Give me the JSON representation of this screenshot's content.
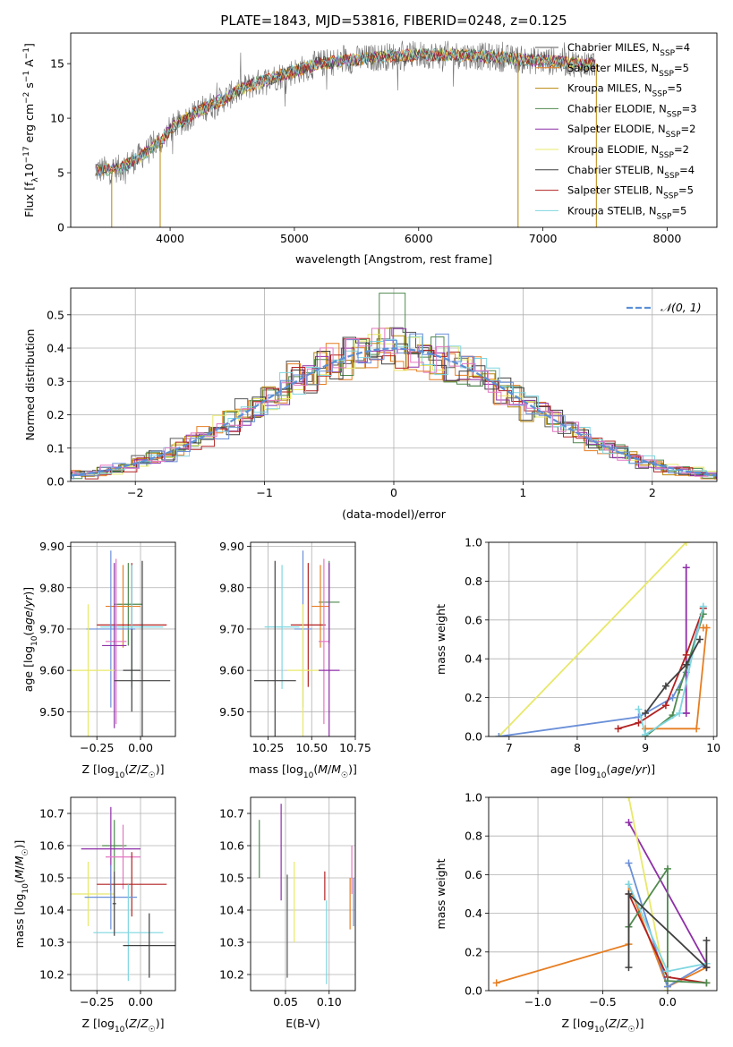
{
  "figure": {
    "title": "PLATE=1843, MJD=53816, FIBERID=0248, z=0.125"
  },
  "colors": {
    "palette": [
      "#5a5a5a",
      "#e67e22",
      "#b8860b",
      "#4f8a4f",
      "#8e2fa8",
      "#e8e86a",
      "#404040",
      "#b22222",
      "#7fd6e0",
      "#6a8fd8",
      "#e377c2"
    ],
    "grid": "#b0b0b0",
    "normal_curve": "#5b8fd6"
  },
  "chart_data": [
    {
      "id": "spectrum",
      "type": "line",
      "xlabel": "wavelength [Angstrom, rest frame]",
      "ylabel": "Flux [fλ 10^-17 erg cm^-2 s^-1 A^-1]",
      "xlim": [
        3200,
        8400
      ],
      "ylim": [
        0,
        17.8
      ],
      "xticks": [
        4000,
        5000,
        6000,
        7000,
        8000
      ],
      "yticks": [
        0,
        5,
        10,
        15
      ],
      "grid": false,
      "legend_position": "top-right",
      "legend": [
        "Chabrier MILES, N_SSP=4",
        "Salpeter MILES, N_SSP=5",
        "Kroupa MILES, N_SSP=5",
        "Chabrier ELODIE, N_SSP=3",
        "Salpeter ELODIE, N_SSP=2",
        "Kroupa ELODIE, N_SSP=2",
        "Chabrier STELIB, N_SSP=4",
        "Salpeter STELIB, N_SSP=5",
        "Kroupa STELIB, N_SSP=5"
      ],
      "legend_colors": [
        "#5a5a5a",
        "#e67e22",
        "#b8860b",
        "#4f8a4f",
        "#8e2fa8",
        "#e8e86a",
        "#404040",
        "#b22222",
        "#7fd6e0"
      ],
      "continuum": {
        "x": [
          3400,
          3600,
          3800,
          3950,
          4000,
          4200,
          4400,
          4600,
          4800,
          5000,
          5200,
          5500,
          5800,
          6000,
          6300,
          6600,
          6900,
          7100,
          7300,
          7420
        ],
        "y": [
          5.2,
          5.4,
          6.8,
          8.2,
          9.0,
          10.5,
          11.6,
          12.8,
          13.6,
          14.3,
          15.0,
          15.4,
          15.7,
          15.8,
          15.8,
          15.6,
          15.3,
          15.2,
          15.0,
          15.0
        ]
      },
      "spikes_down": [
        {
          "x": 3530,
          "y": 0
        },
        {
          "x": 3920,
          "y": 0
        },
        {
          "x": 6800,
          "y": 0
        },
        {
          "x": 7430,
          "y": 0
        }
      ]
    },
    {
      "id": "residuals",
      "type": "histogram",
      "xlabel": "(data-model)/error",
      "ylabel": "Normed distribution",
      "xlim": [
        -2.5,
        2.5
      ],
      "ylim": [
        0,
        0.58
      ],
      "xticks": [
        -2,
        -1,
        0,
        1,
        2
      ],
      "yticks": [
        0.0,
        0.1,
        0.2,
        0.3,
        0.4,
        0.5
      ],
      "grid": true,
      "legend_position": "top-right",
      "legend": [
        "N(0,1)"
      ],
      "legend_tex": "𝒩(0, 1)",
      "bin_width": 0.1
    },
    {
      "id": "age_vs_Z",
      "type": "errorbar",
      "xlabel": "Z [log10(Z/Z☉)]",
      "ylabel": "age [log10(age/yr)]",
      "xlim": [
        -0.4,
        0.2
      ],
      "ylim": [
        9.44,
        9.91
      ],
      "xticks": [
        -0.25,
        0.0
      ],
      "yticks": [
        9.5,
        9.6,
        9.7,
        9.8,
        9.9
      ],
      "grid": true,
      "points": [
        {
          "x": -0.07,
          "y": 9.76,
          "xerr": 0.08,
          "yerr": 0.1,
          "c": "#4f8a4f"
        },
        {
          "x": -0.1,
          "y": 9.755,
          "xerr": 0.1,
          "yerr": 0.1,
          "c": "#e67e22"
        },
        {
          "x": -0.05,
          "y": 9.71,
          "xerr": 0.2,
          "yerr": 0.15,
          "c": "#b22222"
        },
        {
          "x": -0.05,
          "y": 9.705,
          "xerr": 0.18,
          "yerr": 0.15,
          "c": "#7fd6e0"
        },
        {
          "x": -0.17,
          "y": 9.7,
          "xerr": 0.14,
          "yerr": 0.19,
          "c": "#6a8fd8"
        },
        {
          "x": -0.14,
          "y": 9.67,
          "xerr": 0.06,
          "yerr": 0.2,
          "c": "#e377c2"
        },
        {
          "x": -0.15,
          "y": 9.66,
          "xerr": 0.07,
          "yerr": 0.2,
          "c": "#8e2fa8"
        },
        {
          "x": -0.3,
          "y": 9.6,
          "xerr": 0.15,
          "yerr": 0.16,
          "c": "#e8e86a"
        },
        {
          "x": -0.05,
          "y": 9.6,
          "xerr": 0.05,
          "yerr": 0.1,
          "c": "#404040"
        },
        {
          "x": 0.01,
          "y": 9.575,
          "xerr": 0.16,
          "yerr": 0.29,
          "c": "#404040"
        }
      ]
    },
    {
      "id": "age_vs_mass",
      "type": "errorbar",
      "xlabel": "mass [log10(M/M☉)]",
      "ylabel": "",
      "xlim": [
        10.15,
        10.75
      ],
      "ylim": [
        9.44,
        9.91
      ],
      "xticks": [
        10.25,
        10.5,
        10.75
      ],
      "yticks": [
        9.5,
        9.6,
        9.7,
        9.8,
        9.9
      ],
      "grid": true,
      "points": [
        {
          "x": 10.6,
          "y": 9.765,
          "xerr": 0.06,
          "yerr": 0.1,
          "c": "#4f8a4f"
        },
        {
          "x": 10.55,
          "y": 9.755,
          "xerr": 0.05,
          "yerr": 0.1,
          "c": "#e67e22"
        },
        {
          "x": 10.48,
          "y": 9.71,
          "xerr": 0.1,
          "yerr": 0.15,
          "c": "#b22222"
        },
        {
          "x": 10.33,
          "y": 9.705,
          "xerr": 0.1,
          "yerr": 0.15,
          "c": "#7fd6e0"
        },
        {
          "x": 10.45,
          "y": 9.7,
          "xerr": 0.05,
          "yerr": 0.19,
          "c": "#6a8fd8"
        },
        {
          "x": 10.57,
          "y": 9.67,
          "xerr": 0.03,
          "yerr": 0.2,
          "c": "#e377c2"
        },
        {
          "x": 10.6,
          "y": 9.6,
          "xerr": 0.06,
          "yerr": 0.26,
          "c": "#8e2fa8"
        },
        {
          "x": 10.45,
          "y": 9.6,
          "xerr": 0.09,
          "yerr": 0.16,
          "c": "#e8e86a"
        },
        {
          "x": 10.29,
          "y": 9.575,
          "xerr": 0.12,
          "yerr": 0.29,
          "c": "#404040"
        }
      ]
    },
    {
      "id": "massweight_vs_age",
      "type": "line",
      "xlabel": "age  [log10(age/yr)]",
      "ylabel": "mass weight",
      "xlim": [
        6.7,
        10.05
      ],
      "ylim": [
        0,
        1.0
      ],
      "xticks": [
        7,
        8,
        9,
        10
      ],
      "yticks": [
        0.0,
        0.2,
        0.4,
        0.6,
        0.8,
        1.0
      ],
      "grid": true,
      "series": [
        {
          "c": "#e8e86a",
          "x": [
            6.85,
            9.6
          ],
          "y": [
            0.0,
            1.0
          ]
        },
        {
          "c": "#6a8fd8",
          "x": [
            6.85,
            8.9,
            9.4,
            9.6,
            9.85
          ],
          "y": [
            0.0,
            0.1,
            0.2,
            0.33,
            0.66
          ]
        },
        {
          "c": "#e67e22",
          "x": [
            9.0,
            9.75,
            9.9,
            9.85
          ],
          "y": [
            0.04,
            0.04,
            0.56,
            0.56
          ]
        },
        {
          "c": "#8e2fa8",
          "x": [
            9.6,
            9.6,
            9.6
          ],
          "y": [
            0.87,
            0.12,
            0.12
          ]
        },
        {
          "c": "#b22222",
          "x": [
            8.6,
            8.9,
            9.3,
            9.6,
            9.85
          ],
          "y": [
            0.04,
            0.07,
            0.16,
            0.42,
            0.66
          ]
        },
        {
          "c": "#4f8a4f",
          "x": [
            9.0,
            9.4,
            9.5,
            9.85
          ],
          "y": [
            0.0,
            0.11,
            0.24,
            0.63
          ]
        },
        {
          "c": "#7fd6e0",
          "x": [
            8.9,
            9.0,
            9.5,
            9.85
          ],
          "y": [
            0.14,
            0.01,
            0.12,
            0.67
          ]
        },
        {
          "c": "#404040",
          "x": [
            9.0,
            9.3,
            9.6,
            9.8
          ],
          "y": [
            0.12,
            0.26,
            0.37,
            0.5
          ]
        }
      ]
    },
    {
      "id": "mass_vs_Z",
      "type": "errorbar",
      "xlabel": "Z [log10(Z/Z☉)]",
      "ylabel": "mass [log10(M/M☉)]",
      "xlim": [
        -0.4,
        0.2
      ],
      "ylim": [
        10.15,
        10.75
      ],
      "xticks": [
        -0.25,
        0.0
      ],
      "yticks": [
        10.2,
        10.3,
        10.4,
        10.5,
        10.6,
        10.7
      ],
      "grid": true,
      "points": [
        {
          "x": -0.15,
          "y": 10.6,
          "xerr": 0.07,
          "yerr": 0.08,
          "c": "#4f8a4f"
        },
        {
          "x": -0.17,
          "y": 10.59,
          "xerr": 0.17,
          "yerr": 0.13,
          "c": "#8e2fa8"
        },
        {
          "x": -0.1,
          "y": 10.565,
          "xerr": 0.1,
          "yerr": 0.1,
          "c": "#e377c2"
        },
        {
          "x": -0.05,
          "y": 10.48,
          "xerr": 0.2,
          "yerr": 0.1,
          "c": "#b22222"
        },
        {
          "x": -0.3,
          "y": 10.45,
          "xerr": 0.15,
          "yerr": 0.1,
          "c": "#e8e86a"
        },
        {
          "x": -0.17,
          "y": 10.44,
          "xerr": 0.15,
          "yerr": 0.1,
          "c": "#6a8fd8"
        },
        {
          "x": -0.07,
          "y": 10.33,
          "xerr": 0.2,
          "yerr": 0.15,
          "c": "#7fd6e0"
        },
        {
          "x": 0.05,
          "y": 10.29,
          "xerr": 0.15,
          "yerr": 0.1,
          "c": "#404040"
        },
        {
          "x": -0.15,
          "y": 10.42,
          "xerr": 0.01,
          "yerr": 0.1,
          "c": "#404040"
        }
      ]
    },
    {
      "id": "mass_vs_EBV",
      "type": "errorbar",
      "xlabel": "E(B-V)",
      "ylabel": "",
      "xlim": [
        0.01,
        0.13
      ],
      "ylim": [
        10.15,
        10.75
      ],
      "xticks": [
        0.05,
        0.1
      ],
      "yticks": [
        10.2,
        10.3,
        10.4,
        10.5,
        10.6,
        10.7
      ],
      "grid": true,
      "vlines": [
        {
          "x": 0.02,
          "y0": 10.5,
          "y1": 10.68,
          "c": "#4f8a4f"
        },
        {
          "x": 0.045,
          "y0": 10.43,
          "y1": 10.73,
          "c": "#8e2fa8"
        },
        {
          "x": 0.052,
          "y0": 10.19,
          "y1": 10.51,
          "c": "#5a5a5a"
        },
        {
          "x": 0.06,
          "y0": 10.3,
          "y1": 10.55,
          "c": "#e8e86a"
        },
        {
          "x": 0.095,
          "y0": 10.43,
          "y1": 10.52,
          "c": "#b22222"
        },
        {
          "x": 0.097,
          "y0": 10.17,
          "y1": 10.43,
          "c": "#7fd6e0"
        },
        {
          "x": 0.124,
          "y0": 10.34,
          "y1": 10.5,
          "c": "#e67e22"
        },
        {
          "x": 0.126,
          "y0": 10.45,
          "y1": 10.6,
          "c": "#e377c2"
        },
        {
          "x": 0.128,
          "y0": 10.35,
          "y1": 10.5,
          "c": "#6a8fd8"
        }
      ]
    },
    {
      "id": "massweight_vs_Z",
      "type": "line",
      "xlabel": "Z [log10(Z/Z☉)]",
      "ylabel": "mass weight",
      "xlim": [
        -1.38,
        0.38
      ],
      "ylim": [
        0,
        1.0
      ],
      "xticks": [
        -1.0,
        -0.5,
        0.0
      ],
      "yticks": [
        0.0,
        0.2,
        0.4,
        0.6,
        0.8,
        1.0
      ],
      "grid": true,
      "series": [
        {
          "c": "#e67e22",
          "x": [
            -1.32,
            -0.3,
            -0.3,
            0.0,
            0.3
          ],
          "y": [
            0.04,
            0.24,
            0.55,
            0.02,
            0.12
          ]
        },
        {
          "c": "#8e2fa8",
          "x": [
            -0.3,
            0.3,
            0.3
          ],
          "y": [
            0.87,
            0.14,
            0.12
          ]
        },
        {
          "c": "#e8e86a",
          "x": [
            -0.3,
            0.0
          ],
          "y": [
            1.0,
            0.0
          ]
        },
        {
          "c": "#6a8fd8",
          "x": [
            -0.3,
            0.0,
            0.3
          ],
          "y": [
            0.66,
            0.02,
            0.14
          ]
        },
        {
          "c": "#b22222",
          "x": [
            -0.3,
            0.0,
            0.3
          ],
          "y": [
            0.5,
            0.07,
            0.04
          ]
        },
        {
          "c": "#4f8a4f",
          "x": [
            -0.3,
            0.0,
            0.0,
            0.3
          ],
          "y": [
            0.33,
            0.63,
            0.05,
            0.04
          ]
        },
        {
          "c": "#7fd6e0",
          "x": [
            -0.3,
            0.0,
            0.3
          ],
          "y": [
            0.55,
            0.1,
            0.14
          ]
        },
        {
          "c": "#404040",
          "x": [
            -0.3,
            -0.3,
            0.3,
            0.3
          ],
          "y": [
            0.12,
            0.5,
            0.12,
            0.26
          ]
        }
      ]
    }
  ]
}
